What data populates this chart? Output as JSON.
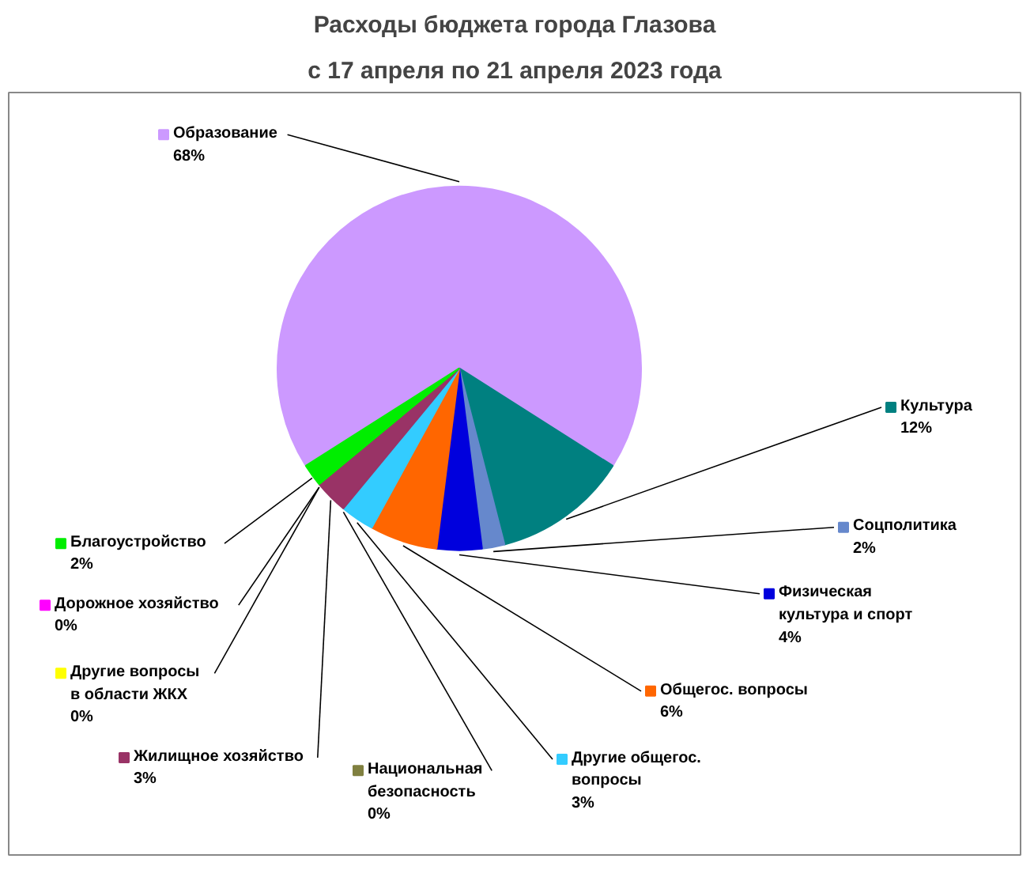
{
  "chart_data": {
    "type": "pie",
    "title": "Расходы бюджета города Глазова",
    "subtitle": "с 17 апреля по 21 апреля 2023 года",
    "categories": [
      "Образование",
      "Культура",
      "Соцполитика",
      "Физическая культура и спорт",
      "Общегос. вопросы",
      "Другие общегос. вопросы",
      "Национальная безопасность",
      "Жилищное хозяйство",
      "Другие вопросы в области ЖКХ",
      "Дорожное хозяйство",
      "Благоустройство"
    ],
    "values": [
      68,
      12,
      2,
      4,
      6,
      3,
      0,
      3,
      0,
      0,
      2
    ],
    "value_labels": [
      "68%",
      "12%",
      "2%",
      "4%",
      "6%",
      "3%",
      "0%",
      "3%",
      "0%",
      "0%",
      "2%"
    ],
    "legend": "bottom",
    "colors": [
      "#cc99ff",
      "#008080",
      "#6688cc",
      "#0000dd",
      "#ff6600",
      "#33ccff",
      "#808040",
      "#993366",
      "#ffff00",
      "#ff00ff",
      "#00ee00"
    ]
  }
}
